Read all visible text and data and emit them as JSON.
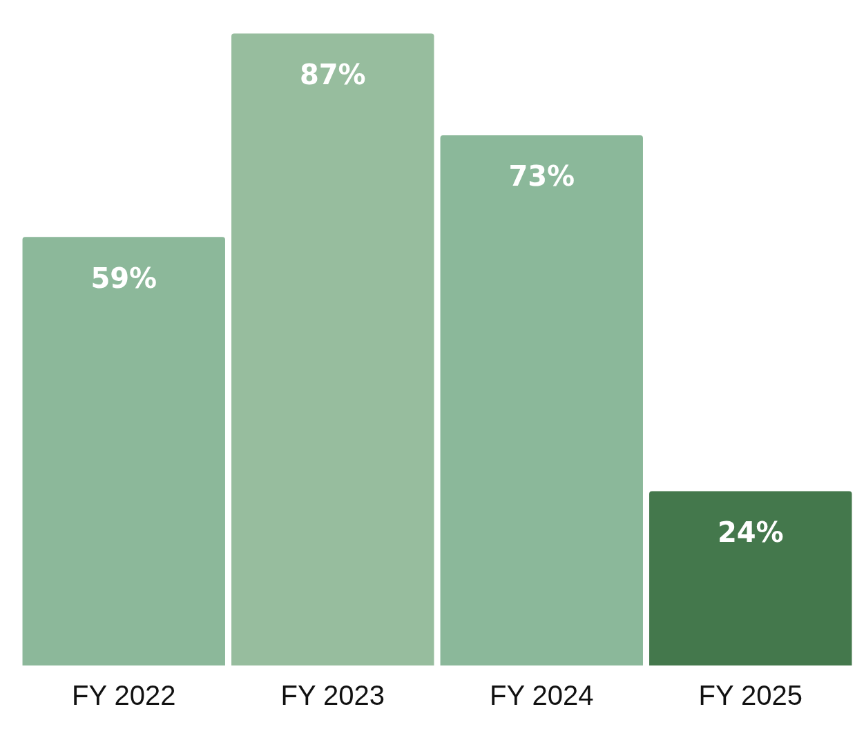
{
  "chart_data": {
    "type": "bar",
    "categories": [
      "FY 2022",
      "FY 2023",
      "FY 2024",
      "FY 2025"
    ],
    "values": [
      59,
      87,
      73,
      24
    ],
    "colors": [
      "#8cb89a",
      "#97bd9e",
      "#8bb89a",
      "#44784c"
    ],
    "value_labels": [
      "59%",
      "87%",
      "73%",
      "24%"
    ],
    "tick_labels": "x",
    "grid": false,
    "legend": false
  }
}
